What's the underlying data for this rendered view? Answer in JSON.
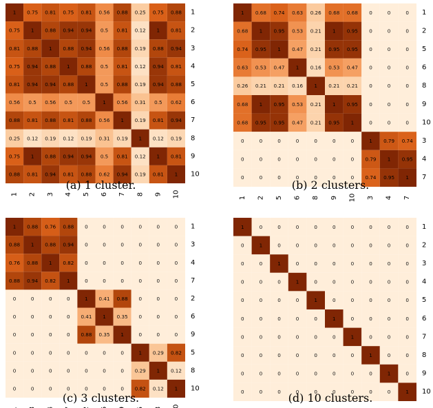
{
  "chart_data": [
    {
      "type": "heatmap",
      "caption": "(a) 1 cluster.",
      "row_labels": [
        "1",
        "2",
        "3",
        "4",
        "5",
        "6",
        "7",
        "8",
        "9",
        "10"
      ],
      "col_labels": [
        "1",
        "2",
        "3",
        "4",
        "5",
        "6",
        "7",
        "8",
        "9",
        "10"
      ],
      "values": [
        [
          1,
          0.75,
          0.81,
          0.75,
          0.81,
          0.56,
          0.88,
          0.25,
          0.75,
          0.88
        ],
        [
          0.75,
          1,
          0.88,
          0.94,
          0.94,
          0.5,
          0.81,
          0.12,
          1,
          0.81
        ],
        [
          0.81,
          0.88,
          1,
          0.88,
          0.94,
          0.56,
          0.88,
          0.19,
          0.88,
          0.94
        ],
        [
          0.75,
          0.94,
          0.88,
          1,
          0.88,
          0.5,
          0.81,
          0.12,
          0.94,
          0.81
        ],
        [
          0.81,
          0.94,
          0.94,
          0.88,
          1,
          0.5,
          0.88,
          0.19,
          0.94,
          0.88
        ],
        [
          0.56,
          0.5,
          0.56,
          0.5,
          0.5,
          1,
          0.56,
          0.31,
          0.5,
          0.62
        ],
        [
          0.88,
          0.81,
          0.88,
          0.81,
          0.88,
          0.56,
          1,
          0.19,
          0.81,
          0.94
        ],
        [
          0.25,
          0.12,
          0.19,
          0.12,
          0.19,
          0.31,
          0.19,
          1,
          0.12,
          0.19
        ],
        [
          0.75,
          1,
          0.88,
          0.94,
          0.94,
          0.5,
          0.81,
          0.12,
          1,
          0.81
        ],
        [
          0.88,
          0.81,
          0.94,
          0.81,
          0.88,
          0.62,
          0.94,
          0.19,
          0.81,
          1
        ]
      ]
    },
    {
      "type": "heatmap",
      "caption": "(b) 2 clusters.",
      "row_labels": [
        "1",
        "2",
        "5",
        "6",
        "8",
        "9",
        "10",
        "3",
        "4",
        "7"
      ],
      "col_labels": [
        "1",
        "2",
        "5",
        "6",
        "8",
        "9",
        "10",
        "3",
        "4",
        "7"
      ],
      "values": [
        [
          1,
          0.68,
          0.74,
          0.63,
          0.26,
          0.68,
          0.68,
          0,
          0,
          0
        ],
        [
          0.68,
          1,
          0.95,
          0.53,
          0.21,
          1,
          0.95,
          0,
          0,
          0
        ],
        [
          0.74,
          0.95,
          1,
          0.47,
          0.21,
          0.95,
          0.95,
          0,
          0,
          0
        ],
        [
          0.63,
          0.53,
          0.47,
          1,
          0.16,
          0.53,
          0.47,
          0,
          0,
          0
        ],
        [
          0.26,
          0.21,
          0.21,
          0.16,
          1,
          0.21,
          0.21,
          0,
          0,
          0
        ],
        [
          0.68,
          1,
          0.95,
          0.53,
          0.21,
          1,
          0.95,
          0,
          0,
          0
        ],
        [
          0.68,
          0.95,
          0.95,
          0.47,
          0.21,
          0.95,
          1,
          0,
          0,
          0
        ],
        [
          0,
          0,
          0,
          0,
          0,
          0,
          0,
          1,
          0.79,
          0.74
        ],
        [
          0,
          0,
          0,
          0,
          0,
          0,
          0,
          0.79,
          1,
          0.95
        ],
        [
          0,
          0,
          0,
          0,
          0,
          0,
          0,
          0.74,
          0.95,
          1
        ]
      ]
    },
    {
      "type": "heatmap",
      "caption": "(c) 3 clusters.",
      "row_labels": [
        "1",
        "3",
        "4",
        "7",
        "2",
        "6",
        "9",
        "5",
        "8",
        "10"
      ],
      "col_labels": [
        "1",
        "3",
        "4",
        "7",
        "2",
        "6",
        "9",
        "5",
        "8",
        "10"
      ],
      "values": [
        [
          1,
          0.88,
          0.76,
          0.88,
          0,
          0,
          0,
          0,
          0,
          0
        ],
        [
          0.88,
          1,
          0.88,
          0.94,
          0,
          0,
          0,
          0,
          0,
          0
        ],
        [
          0.76,
          0.88,
          1,
          0.82,
          0,
          0,
          0,
          0,
          0,
          0
        ],
        [
          0.88,
          0.94,
          0.82,
          1,
          0,
          0,
          0,
          0,
          0,
          0
        ],
        [
          0,
          0,
          0,
          0,
          1,
          0.41,
          0.88,
          0,
          0,
          0
        ],
        [
          0,
          0,
          0,
          0,
          0.41,
          1,
          0.35,
          0,
          0,
          0
        ],
        [
          0,
          0,
          0,
          0,
          0.88,
          0.35,
          1,
          0,
          0,
          0
        ],
        [
          0,
          0,
          0,
          0,
          0,
          0,
          0,
          1,
          0.29,
          0.82
        ],
        [
          0,
          0,
          0,
          0,
          0,
          0,
          0,
          0.29,
          1,
          0.12
        ],
        [
          0,
          0,
          0,
          0,
          0,
          0,
          0,
          0.82,
          0.12,
          1
        ]
      ]
    },
    {
      "type": "heatmap",
      "caption": "(d) 10 clusters.",
      "row_labels": [
        "1",
        "2",
        "3",
        "4",
        "5",
        "6",
        "7",
        "8",
        "9",
        "10"
      ],
      "col_labels": [
        "1",
        "2",
        "3",
        "4",
        "5",
        "6",
        "7",
        "8",
        "9",
        "10"
      ],
      "values": [
        [
          1,
          0,
          0,
          0,
          0,
          0,
          0,
          0,
          0,
          0
        ],
        [
          0,
          1,
          0,
          0,
          0,
          0,
          0,
          0,
          0,
          0
        ],
        [
          0,
          0,
          1,
          0,
          0,
          0,
          0,
          0,
          0,
          0
        ],
        [
          0,
          0,
          0,
          1,
          0,
          0,
          0,
          0,
          0,
          0
        ],
        [
          0,
          0,
          0,
          0,
          1,
          0,
          0,
          0,
          0,
          0
        ],
        [
          0,
          0,
          0,
          0,
          0,
          1,
          0,
          0,
          0,
          0
        ],
        [
          0,
          0,
          0,
          0,
          0,
          0,
          1,
          0,
          0,
          0
        ],
        [
          0,
          0,
          0,
          0,
          0,
          0,
          0,
          1,
          0,
          0
        ],
        [
          0,
          0,
          0,
          0,
          0,
          0,
          0,
          0,
          1,
          0
        ],
        [
          0,
          0,
          0,
          0,
          0,
          0,
          0,
          0,
          0,
          1
        ]
      ]
    }
  ]
}
